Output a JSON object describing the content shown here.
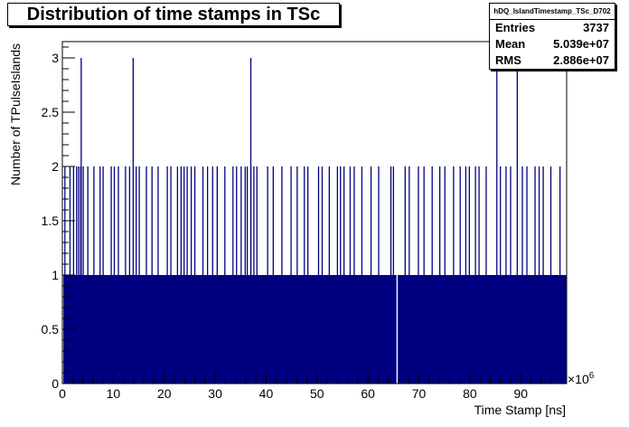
{
  "chart_data": {
    "type": "histogram",
    "title": "Distribution of time stamps in TSc",
    "xlabel": "Time Stamp [ns]",
    "ylabel": "Number of TPulseIslands",
    "x_multiplier_label": "×10",
    "x_multiplier_exp": "6",
    "xlim": [
      0,
      99
    ],
    "ylim": [
      0,
      3.15
    ],
    "x_ticks": [
      0,
      10,
      20,
      30,
      40,
      50,
      60,
      70,
      80,
      90
    ],
    "y_ticks": [
      0,
      0.5,
      1,
      1.5,
      2,
      2.5,
      3
    ],
    "y_tick_labels": [
      "0",
      "0.5",
      "1",
      "1.5",
      "2",
      "2.5",
      "3"
    ],
    "bar_color": "#000080",
    "baseline_level": 1,
    "baseline_range": [
      0.2,
      98.9
    ],
    "gap_at": [
      65.7
    ],
    "bins_at_2": [
      0.5,
      1.5,
      2.2,
      2.8,
      3.2,
      3.6,
      4.1,
      5.0,
      6.2,
      7.4,
      8.0,
      9.6,
      10.2,
      11.0,
      12.4,
      13.2,
      14.5,
      15.1,
      16.5,
      17.6,
      18.8,
      20.6,
      21.3,
      22.6,
      23.3,
      23.9,
      24.5,
      25.3,
      26.0,
      27.6,
      28.5,
      29.5,
      30.4,
      31.9,
      33.5,
      34.2,
      35.1,
      35.9,
      36.3,
      37.0,
      37.6,
      38.2,
      40.3,
      41.4,
      43.1,
      44.9,
      46.1,
      47.5,
      48.2,
      50.3,
      51.0,
      52.4,
      54.0,
      54.6,
      55.3,
      56.5,
      57.3,
      58.8,
      60.6,
      62.1,
      64.5,
      65.0,
      67.3,
      68.1,
      69.9,
      71.0,
      72.6,
      74.1,
      75.1,
      76.8,
      78.1,
      79.2,
      79.9,
      81.1,
      81.8,
      83.2,
      86.0,
      87.1,
      88.0,
      90.3,
      91.2,
      92.8,
      93.6,
      94.4,
      95.9,
      97.7
    ],
    "bins_at_3": [
      3.7,
      13.9,
      37.0,
      85.3,
      89.3
    ],
    "stats": {
      "name": "hDQ_IslandTimestamp_TSc_D702",
      "rows": [
        {
          "label": "Entries",
          "value": "3737"
        },
        {
          "label": "Mean",
          "value": "5.039e+07"
        },
        {
          "label": "RMS",
          "value": "2.886e+07"
        }
      ]
    }
  }
}
